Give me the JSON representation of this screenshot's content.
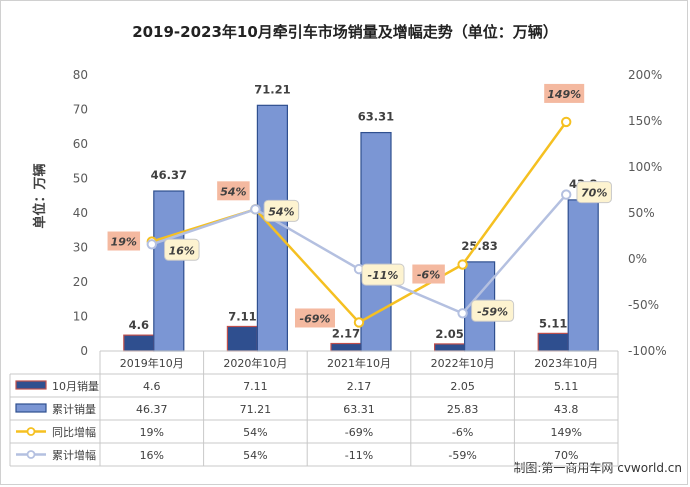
{
  "chart_data": {
    "type": "bar",
    "title": "2019-2023年10月牵引车市场销量及增幅走势（单位：万辆）",
    "ylabel": "单位：万辆",
    "ylim": [
      0,
      80
    ],
    "yticks": [
      "0",
      "10",
      "20",
      "30",
      "40",
      "50",
      "60",
      "70",
      "80"
    ],
    "y2lim": [
      -100,
      200
    ],
    "y2ticks": [
      "-100%",
      "-50%",
      "0%",
      "50%",
      "100%",
      "150%",
      "200%"
    ],
    "categories": [
      "2019年10月",
      "2020年10月",
      "2021年10月",
      "2022年10月",
      "2023年10月"
    ],
    "series": [
      {
        "name": "10月销量",
        "kind": "bar",
        "color": "#c0504d",
        "fill": "#2f4f8f",
        "values": [
          4.6,
          7.11,
          2.17,
          2.05,
          5.11
        ],
        "table": [
          "4.6",
          "7.11",
          "2.17",
          "2.05",
          "5.11"
        ]
      },
      {
        "name": "累计销量",
        "kind": "bar",
        "color": "#2f4f8f",
        "fill": "#7b96d4",
        "values": [
          46.37,
          71.21,
          63.31,
          25.83,
          43.8
        ],
        "table": [
          "46.37",
          "71.21",
          "63.31",
          "25.83",
          "43.8"
        ]
      },
      {
        "name": "同比增幅",
        "kind": "line",
        "color": "#f5c021",
        "values": [
          19,
          54,
          -69,
          -6,
          149
        ],
        "labels": [
          "19%",
          "54%",
          "-69%",
          "-6%",
          "149%"
        ]
      },
      {
        "name": "累计增幅",
        "kind": "line",
        "color": "#b4c0e0",
        "values": [
          16,
          54,
          -11,
          -59,
          70
        ],
        "labels": [
          "16%",
          "54%",
          "-11%",
          "-59%",
          "70%"
        ]
      }
    ],
    "legend": "bottom-table",
    "grid": false
  },
  "credit": "制图:第一商用车网 cvworld.cn"
}
